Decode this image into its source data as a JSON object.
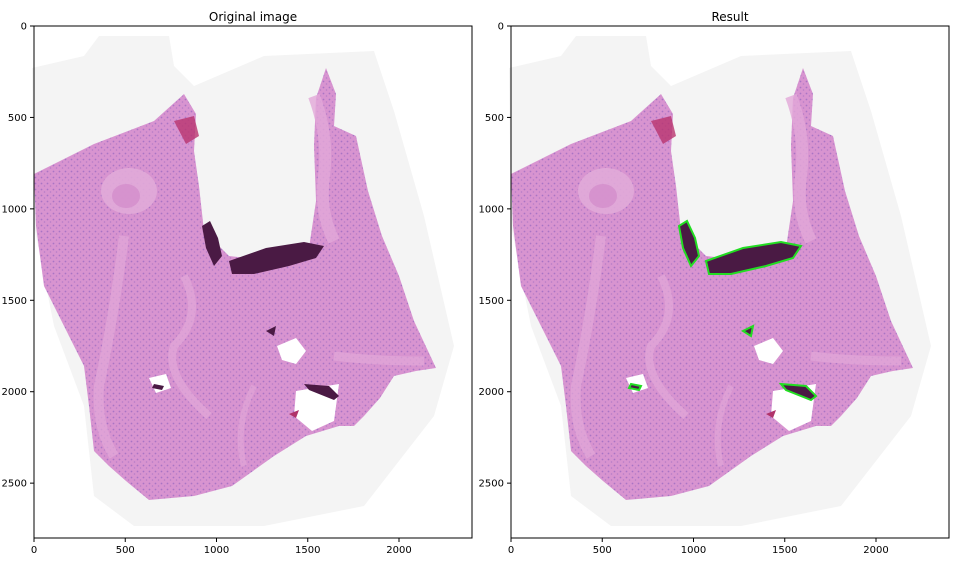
{
  "panels": [
    {
      "id": "original",
      "title": "Original image",
      "x_ticks": [
        "0",
        "500",
        "1000",
        "1500",
        "2000"
      ],
      "y_ticks": [
        "0",
        "500",
        "1000",
        "1500",
        "2000",
        "2500"
      ],
      "x_tick_values": [
        0,
        500,
        1000,
        1500,
        2000
      ],
      "y_tick_values": [
        0,
        500,
        1000,
        1500,
        2000,
        2500
      ],
      "xlim": [
        0,
        2400
      ],
      "ylim": [
        2800,
        0
      ],
      "show_segmentation": false
    },
    {
      "id": "result",
      "title": "Result",
      "x_ticks": [
        "0",
        "500",
        "1000",
        "1500",
        "2000"
      ],
      "y_ticks": [
        "0",
        "500",
        "1000",
        "1500",
        "2000",
        "2500"
      ],
      "x_tick_values": [
        0,
        500,
        1000,
        1500,
        2000
      ],
      "y_tick_values": [
        0,
        500,
        1000,
        1500,
        2000,
        2500
      ],
      "xlim": [
        0,
        2400
      ],
      "ylim": [
        2800,
        0
      ],
      "show_segmentation": true
    }
  ],
  "colors": {
    "tissue": "#d58fce",
    "tissue_dark": "#b873b8",
    "nuclei": "#9a6cc0",
    "fold": "#4a1a44",
    "blood": "#b0336a",
    "segmentation": "#22dd22",
    "background_tile": "#f3f3f3"
  }
}
